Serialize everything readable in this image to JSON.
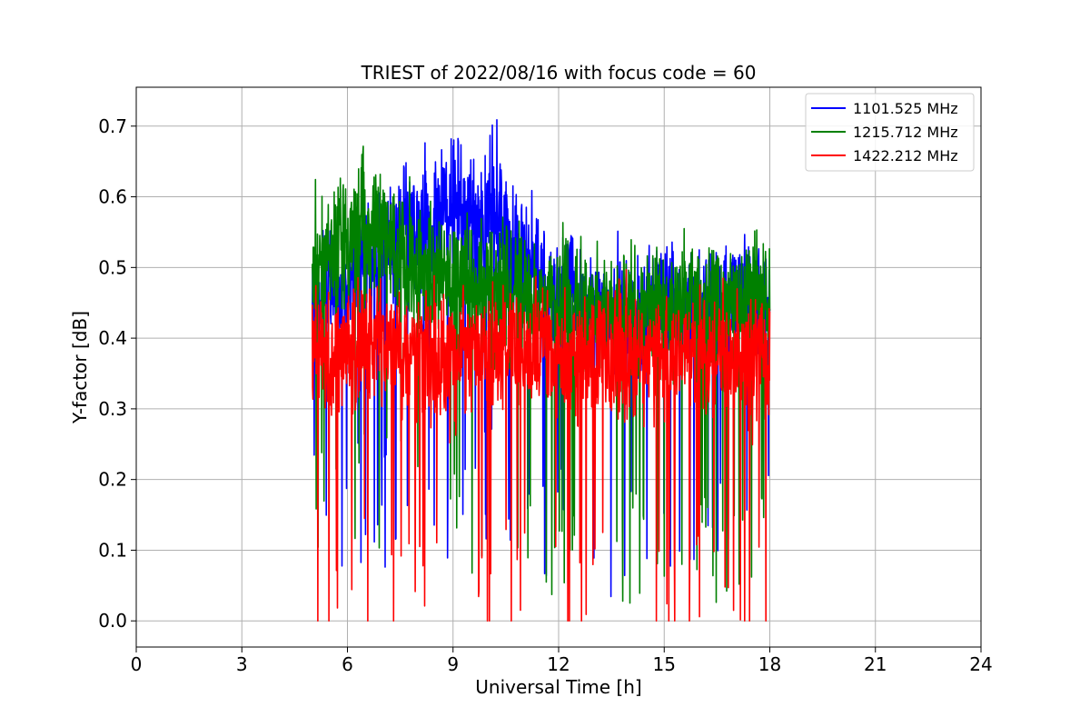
{
  "chart_data": {
    "type": "line",
    "title": "TRIEST of 2022/08/16 with focus code = 60",
    "xlabel": "Universal Time [h]",
    "ylabel": "Y-factor [dB]",
    "xlim": [
      0,
      24
    ],
    "ylim": [
      -0.037,
      0.755
    ],
    "xticks": [
      0,
      3,
      6,
      9,
      12,
      15,
      18,
      21,
      24
    ],
    "yticks": [
      0.0,
      0.1,
      0.2,
      0.3,
      0.4,
      0.5,
      0.6,
      0.7
    ],
    "grid": true,
    "legend_position": "top-right",
    "series": [
      {
        "name": "1101.525 MHz",
        "color": "#0000ff",
        "x": [
          5.0,
          5.25,
          5.5,
          5.75,
          6.0,
          6.25,
          6.5,
          6.75,
          7.0,
          7.25,
          7.5,
          7.75,
          8.0,
          8.25,
          8.5,
          8.75,
          9.0,
          9.25,
          9.5,
          9.75,
          10.0,
          10.25,
          10.5,
          10.75,
          11.0,
          11.25,
          11.5,
          11.75,
          12.0,
          12.25,
          12.5,
          12.75,
          13.0,
          13.25,
          13.5,
          13.75,
          14.0,
          14.25,
          14.5,
          14.75,
          15.0,
          15.25,
          15.5,
          15.75,
          16.0,
          16.25,
          16.5,
          16.75,
          17.0,
          17.25,
          17.5,
          17.75,
          18.0
        ],
        "values": [
          0.46,
          0.44,
          0.47,
          0.45,
          0.48,
          0.49,
          0.5,
          0.51,
          0.53,
          0.52,
          0.54,
          0.56,
          0.55,
          0.57,
          0.56,
          0.58,
          0.57,
          0.58,
          0.56,
          0.57,
          0.59,
          0.57,
          0.54,
          0.52,
          0.51,
          0.5,
          0.49,
          0.47,
          0.46,
          0.47,
          0.45,
          0.44,
          0.45,
          0.43,
          0.42,
          0.44,
          0.43,
          0.42,
          0.43,
          0.45,
          0.46,
          0.44,
          0.43,
          0.44,
          0.45,
          0.44,
          0.46,
          0.45,
          0.46,
          0.45,
          0.47,
          0.46,
          0.47
        ],
        "amplitude": [
          0.09,
          0.1,
          0.1,
          0.1,
          0.11,
          0.11,
          0.11,
          0.11,
          0.12,
          0.12,
          0.12,
          0.13,
          0.13,
          0.13,
          0.13,
          0.13,
          0.13,
          0.13,
          0.13,
          0.13,
          0.13,
          0.13,
          0.12,
          0.12,
          0.12,
          0.11,
          0.11,
          0.11,
          0.1,
          0.1,
          0.1,
          0.1,
          0.1,
          0.1,
          0.11,
          0.12,
          0.11,
          0.11,
          0.1,
          0.1,
          0.1,
          0.11,
          0.1,
          0.1,
          0.1,
          0.1,
          0.1,
          0.1,
          0.1,
          0.11,
          0.11,
          0.1,
          0.1
        ]
      },
      {
        "name": "1215.712 MHz",
        "color": "#008000",
        "x": [
          5.0,
          5.25,
          5.5,
          5.75,
          6.0,
          6.25,
          6.5,
          6.75,
          7.0,
          7.25,
          7.5,
          7.75,
          8.0,
          8.25,
          8.5,
          8.75,
          9.0,
          9.25,
          9.5,
          9.75,
          10.0,
          10.25,
          10.5,
          10.75,
          11.0,
          11.25,
          11.5,
          11.75,
          12.0,
          12.25,
          12.5,
          12.75,
          13.0,
          13.25,
          13.5,
          13.75,
          14.0,
          14.25,
          14.5,
          14.75,
          15.0,
          15.25,
          15.5,
          15.75,
          16.0,
          16.25,
          16.5,
          16.75,
          17.0,
          17.25,
          17.5,
          17.75,
          18.0
        ],
        "values": [
          0.5,
          0.52,
          0.51,
          0.53,
          0.54,
          0.55,
          0.56,
          0.55,
          0.54,
          0.53,
          0.52,
          0.51,
          0.5,
          0.49,
          0.48,
          0.49,
          0.47,
          0.48,
          0.47,
          0.46,
          0.47,
          0.46,
          0.45,
          0.46,
          0.45,
          0.44,
          0.46,
          0.45,
          0.44,
          0.45,
          0.44,
          0.43,
          0.44,
          0.43,
          0.42,
          0.43,
          0.44,
          0.43,
          0.44,
          0.45,
          0.44,
          0.43,
          0.44,
          0.45,
          0.44,
          0.45,
          0.44,
          0.45,
          0.46,
          0.45,
          0.46,
          0.45,
          0.44
        ],
        "amplitude": [
          0.11,
          0.11,
          0.11,
          0.12,
          0.12,
          0.12,
          0.12,
          0.12,
          0.12,
          0.12,
          0.12,
          0.12,
          0.12,
          0.12,
          0.12,
          0.12,
          0.12,
          0.12,
          0.12,
          0.12,
          0.12,
          0.12,
          0.12,
          0.12,
          0.12,
          0.11,
          0.11,
          0.11,
          0.11,
          0.11,
          0.11,
          0.11,
          0.11,
          0.11,
          0.12,
          0.12,
          0.11,
          0.11,
          0.11,
          0.11,
          0.11,
          0.11,
          0.11,
          0.11,
          0.11,
          0.11,
          0.11,
          0.11,
          0.11,
          0.11,
          0.11,
          0.11,
          0.11
        ]
      },
      {
        "name": "1422.212 MHz",
        "color": "#ff0000",
        "x": [
          5.0,
          5.25,
          5.5,
          5.75,
          6.0,
          6.25,
          6.5,
          6.75,
          7.0,
          7.25,
          7.5,
          7.75,
          8.0,
          8.25,
          8.5,
          8.75,
          9.0,
          9.25,
          9.5,
          9.75,
          10.0,
          10.25,
          10.5,
          10.75,
          11.0,
          11.25,
          11.5,
          11.75,
          12.0,
          12.25,
          12.5,
          12.75,
          13.0,
          13.25,
          13.5,
          13.75,
          14.0,
          14.25,
          14.5,
          14.75,
          15.0,
          15.25,
          15.5,
          15.75,
          16.0,
          16.25,
          16.5,
          16.75,
          17.0,
          17.25,
          17.5,
          17.75,
          18.0
        ],
        "values": [
          0.4,
          0.38,
          0.37,
          0.38,
          0.39,
          0.38,
          0.39,
          0.4,
          0.38,
          0.39,
          0.38,
          0.37,
          0.38,
          0.39,
          0.37,
          0.38,
          0.37,
          0.38,
          0.39,
          0.38,
          0.37,
          0.38,
          0.39,
          0.38,
          0.37,
          0.38,
          0.39,
          0.38,
          0.39,
          0.38,
          0.37,
          0.38,
          0.37,
          0.38,
          0.36,
          0.37,
          0.38,
          0.37,
          0.38,
          0.37,
          0.38,
          0.37,
          0.38,
          0.37,
          0.38,
          0.37,
          0.38,
          0.37,
          0.38,
          0.37,
          0.36,
          0.37,
          0.36
        ],
        "amplitude": [
          0.1,
          0.11,
          0.11,
          0.11,
          0.11,
          0.11,
          0.11,
          0.11,
          0.11,
          0.11,
          0.11,
          0.11,
          0.11,
          0.11,
          0.11,
          0.11,
          0.12,
          0.11,
          0.11,
          0.11,
          0.11,
          0.12,
          0.11,
          0.11,
          0.11,
          0.11,
          0.11,
          0.11,
          0.11,
          0.11,
          0.11,
          0.11,
          0.11,
          0.11,
          0.12,
          0.12,
          0.11,
          0.11,
          0.11,
          0.11,
          0.11,
          0.12,
          0.11,
          0.11,
          0.11,
          0.11,
          0.11,
          0.11,
          0.11,
          0.11,
          0.12,
          0.12,
          0.11
        ]
      }
    ]
  }
}
